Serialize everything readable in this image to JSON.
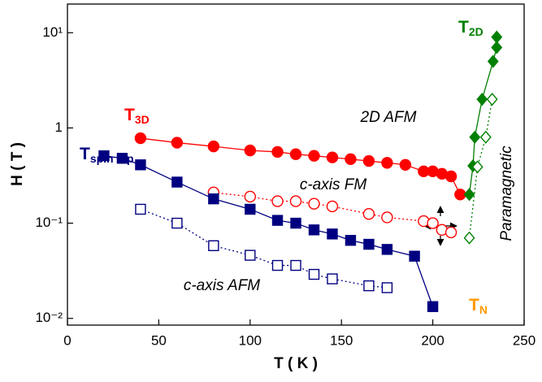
{
  "chart_data": {
    "type": "scatter",
    "xlabel": "T ( K )",
    "ylabel": "H ( T )",
    "xlim": [
      0,
      250
    ],
    "xticks": [
      0,
      50,
      100,
      150,
      200,
      250
    ],
    "ylim": [
      0.0085,
      20
    ],
    "yscale": "log",
    "yticks": [
      {
        "value": 0.01,
        "label": "10⁻²"
      },
      {
        "value": 0.1,
        "label": "10⁻¹"
      },
      1,
      {
        "value": 10,
        "label": "10¹"
      }
    ],
    "series": [
      {
        "name": "T",
        "subscript": "3D",
        "color": "#ff0000",
        "marker": "circle",
        "filled": true,
        "line": "solid",
        "x": [
          40,
          60,
          80,
          100,
          115,
          125,
          135,
          145,
          155,
          165,
          175,
          185,
          195,
          200,
          205,
          210,
          215
        ],
        "values": [
          0.78,
          0.7,
          0.64,
          0.58,
          0.56,
          0.53,
          0.51,
          0.49,
          0.47,
          0.45,
          0.43,
          0.41,
          0.35,
          0.35,
          0.33,
          0.31,
          0.2
        ]
      },
      {
        "color": "#ff0000",
        "marker": "circle",
        "filled": false,
        "line": "dotted",
        "x": [
          80,
          100,
          115,
          125,
          135,
          145,
          165,
          175,
          195,
          200,
          205,
          210
        ],
        "values": [
          0.21,
          0.19,
          0.17,
          0.17,
          0.16,
          0.15,
          0.125,
          0.115,
          0.105,
          0.1,
          0.085,
          0.08
        ]
      },
      {
        "name": "T",
        "subscript": "spin flip",
        "color": "#000080",
        "marker": "square",
        "filled": true,
        "line": "solid",
        "x": [
          20,
          30,
          40,
          60,
          80,
          100,
          115,
          125,
          135,
          145,
          155,
          165,
          175,
          190,
          200
        ],
        "values": [
          0.51,
          0.48,
          0.41,
          0.27,
          0.18,
          0.14,
          0.107,
          0.1,
          0.085,
          0.077,
          0.066,
          0.06,
          0.053,
          0.045,
          0.0133
        ]
      },
      {
        "color": "#000080",
        "marker": "square",
        "filled": false,
        "line": "dotted",
        "x": [
          40,
          60,
          80,
          100,
          115,
          125,
          135,
          145,
          165,
          175
        ],
        "values": [
          0.14,
          0.1,
          0.058,
          0.046,
          0.036,
          0.036,
          0.029,
          0.026,
          0.022,
          0.021
        ]
      },
      {
        "name": "T",
        "subscript": "2D",
        "color": "#008000",
        "marker": "diamond",
        "filled": true,
        "line": "solid",
        "x": [
          220,
          222,
          223,
          227,
          233,
          235,
          235
        ],
        "values": [
          0.2,
          0.4,
          0.8,
          2.0,
          5,
          7,
          9
        ]
      },
      {
        "color": "#008000",
        "marker": "diamond",
        "filled": false,
        "line": "dotted",
        "x": [
          220,
          224.5,
          229,
          232.5
        ],
        "values": [
          0.07,
          0.39,
          0.8,
          2.0
        ]
      }
    ],
    "annotations": [
      {
        "text": "2D AFM"
      },
      {
        "text": "c-axis FM"
      },
      {
        "text": "c-axis AFM"
      },
      {
        "text": "Paramagnetic"
      },
      {
        "text": "T",
        "subscript": "N",
        "color": "#ff9900"
      }
    ]
  }
}
